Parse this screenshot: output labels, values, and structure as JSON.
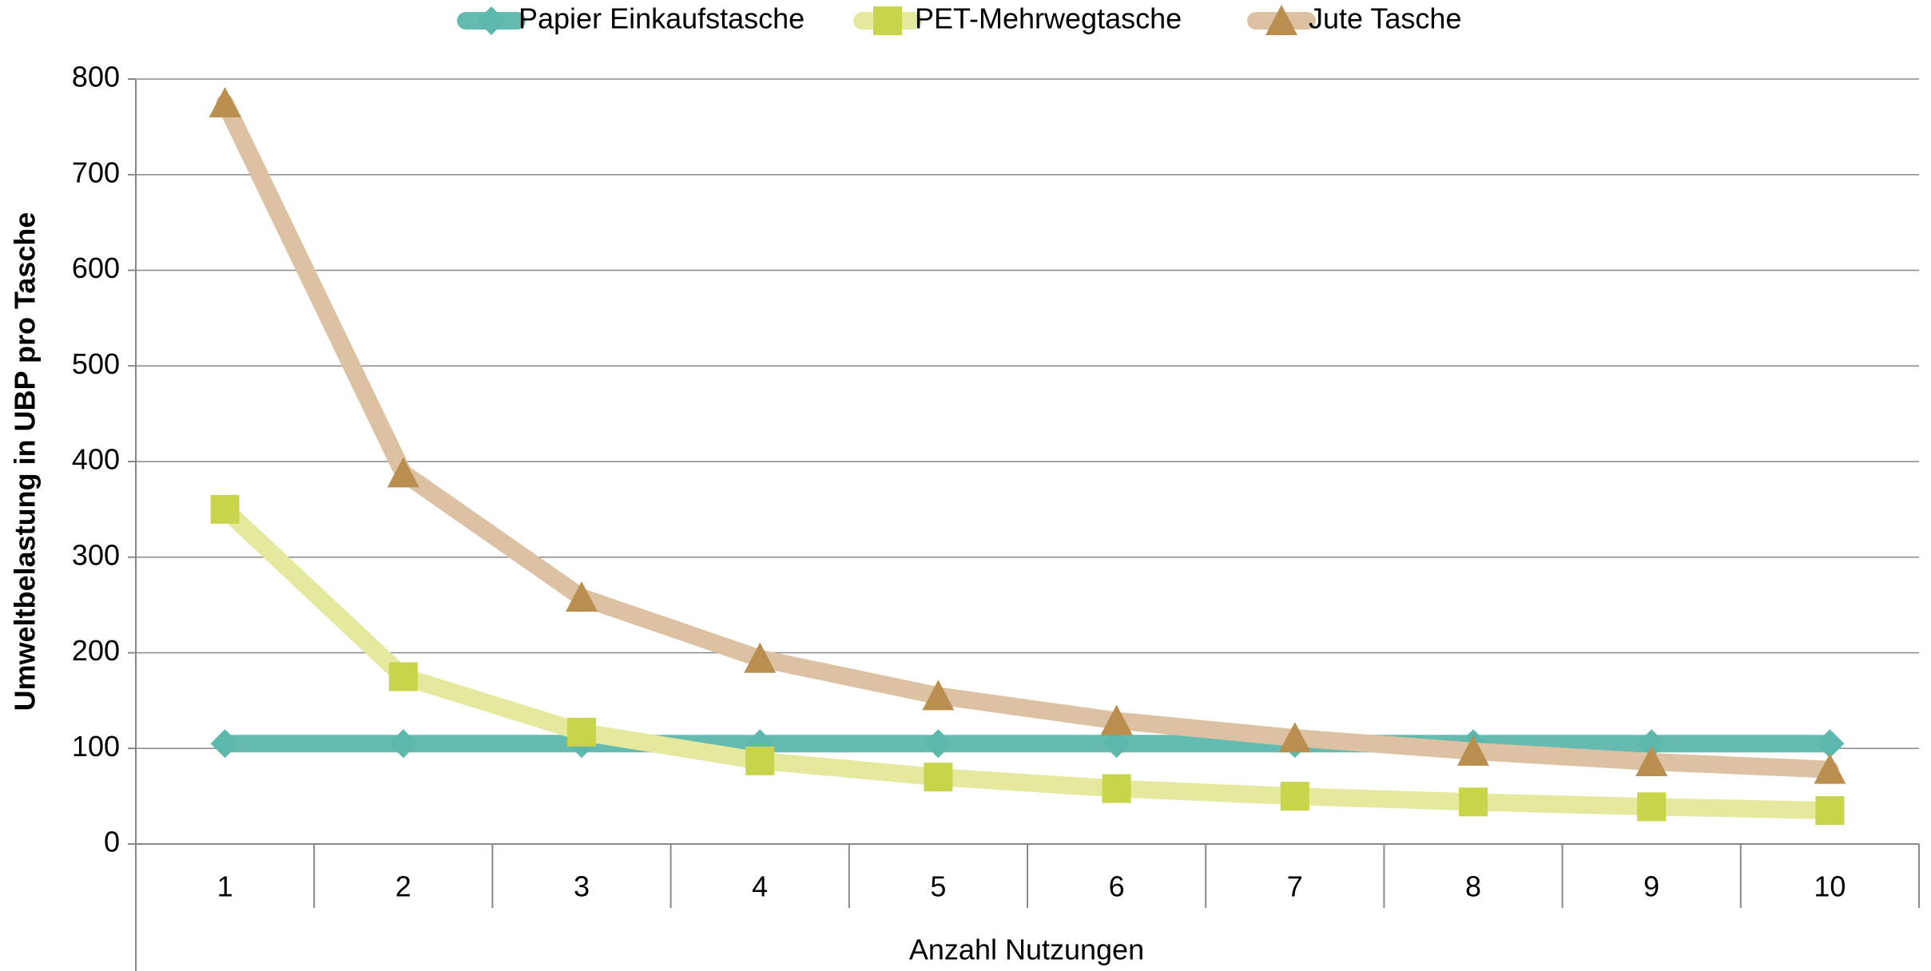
{
  "chart_data": {
    "type": "line",
    "x_label": "Anzahl Nutzungen",
    "y_label": "Umweltbelastung in UBP pro Tasche",
    "categories": [
      "1",
      "2",
      "3",
      "4",
      "5",
      "6",
      "7",
      "8",
      "9",
      "10"
    ],
    "series": [
      {
        "name": "Papier Einkaufstasche",
        "color": "#66bbb0",
        "marker_color": "#5cb8ac",
        "marker": "diamond",
        "values": [
          105,
          105,
          105,
          105,
          105,
          105,
          105,
          105,
          105,
          105
        ]
      },
      {
        "name": "PET-Mehrwegtasche",
        "color": "#e4e99e",
        "marker_color": "#c8d44a",
        "marker": "square",
        "values": [
          350,
          175,
          117,
          87,
          70,
          58,
          50,
          44,
          39,
          35
        ]
      },
      {
        "name": "Jute Tasche",
        "color": "#dcc2a2",
        "marker_color": "#b98e4e",
        "marker": "triangle",
        "values": [
          775,
          388,
          258,
          194,
          155,
          129,
          111,
          97,
          86,
          78
        ]
      }
    ],
    "ylim": [
      0,
      800
    ],
    "yticks": [
      0,
      100,
      200,
      300,
      400,
      500,
      600,
      700,
      800
    ],
    "grid": true,
    "legend": "top"
  }
}
